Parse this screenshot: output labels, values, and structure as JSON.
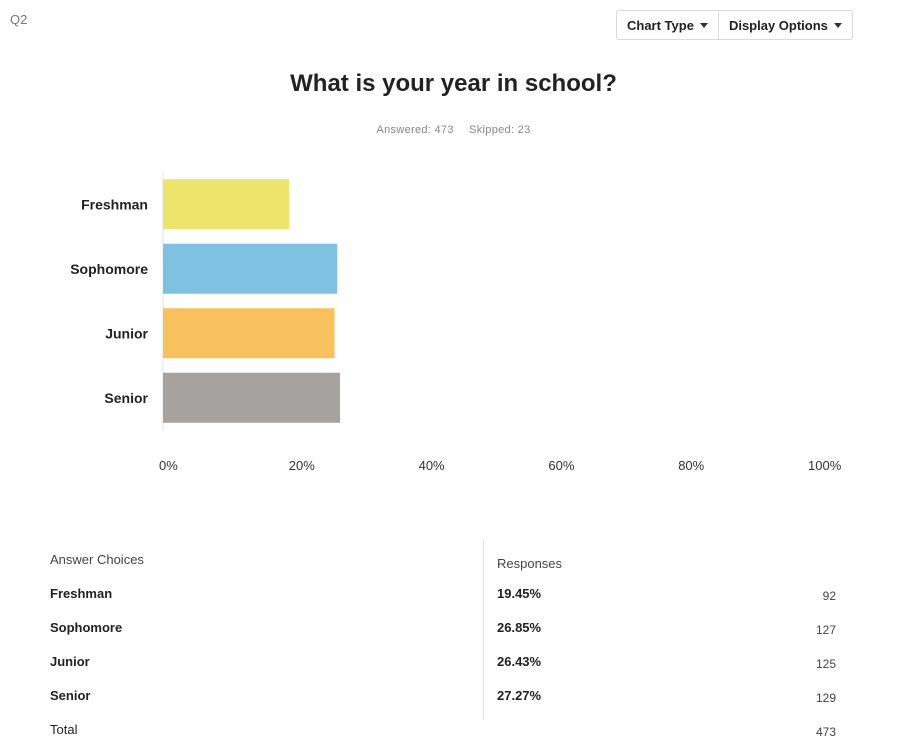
{
  "question": {
    "number": "Q2",
    "title": "What is your year in school?",
    "answered": "Answered: 473",
    "skipped": "Skipped: 23"
  },
  "toolbar": {
    "chart_type_label": "Chart Type",
    "display_options_label": "Display Options"
  },
  "chart_data": {
    "type": "bar",
    "orientation": "horizontal",
    "title": "What is your year in school?",
    "categories": [
      "Freshman",
      "Sophomore",
      "Junior",
      "Senior"
    ],
    "values": [
      19.45,
      26.85,
      26.43,
      27.27
    ],
    "xlim": [
      0,
      100
    ],
    "xticks": [
      "0%",
      "20%",
      "40%",
      "60%",
      "80%",
      "100%"
    ],
    "colors": [
      "#ede46e",
      "#7ec1e0",
      "#f7c15d",
      "#a6a2a0"
    ],
    "grid": false
  },
  "table": {
    "header": {
      "choices": "Answer Choices",
      "responses": "Responses"
    },
    "rows": [
      {
        "choice": "Freshman",
        "percent": "19.45%",
        "count": "92"
      },
      {
        "choice": "Sophomore",
        "percent": "26.85%",
        "count": "127"
      },
      {
        "choice": "Junior",
        "percent": "26.43%",
        "count": "125"
      },
      {
        "choice": "Senior",
        "percent": "27.27%",
        "count": "129"
      }
    ],
    "total": {
      "label": "Total",
      "count": "473"
    }
  }
}
